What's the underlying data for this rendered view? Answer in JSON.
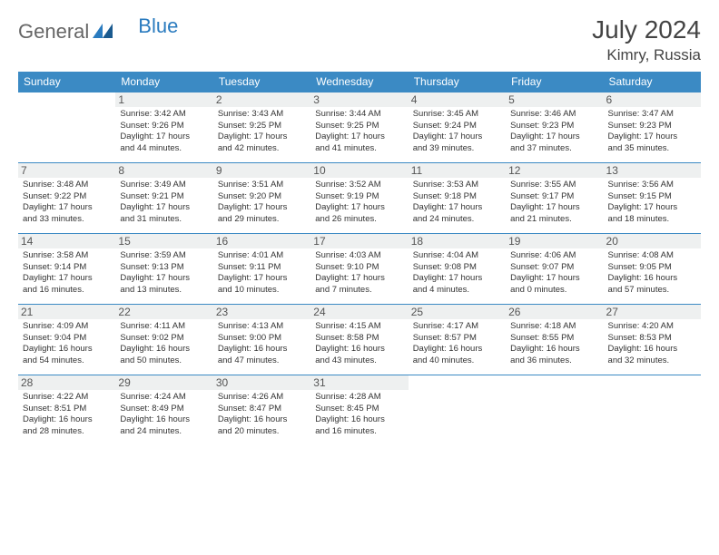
{
  "brand": {
    "word1": "General",
    "word2": "Blue"
  },
  "title": "July 2024",
  "location": "Kimry, Russia",
  "colors": {
    "header_bg": "#3b8ac4",
    "header_text": "#ffffff",
    "row_border": "#3b8ac4",
    "daynum_bg": "#eef0f0",
    "body_text": "#333333",
    "brand_blue": "#2a7bbf",
    "brand_gray": "#666666"
  },
  "weekdays": [
    "Sunday",
    "Monday",
    "Tuesday",
    "Wednesday",
    "Thursday",
    "Friday",
    "Saturday"
  ],
  "weeks": [
    [
      null,
      {
        "n": "1",
        "sr": "Sunrise: 3:42 AM",
        "ss": "Sunset: 9:26 PM",
        "d1": "Daylight: 17 hours",
        "d2": "and 44 minutes."
      },
      {
        "n": "2",
        "sr": "Sunrise: 3:43 AM",
        "ss": "Sunset: 9:25 PM",
        "d1": "Daylight: 17 hours",
        "d2": "and 42 minutes."
      },
      {
        "n": "3",
        "sr": "Sunrise: 3:44 AM",
        "ss": "Sunset: 9:25 PM",
        "d1": "Daylight: 17 hours",
        "d2": "and 41 minutes."
      },
      {
        "n": "4",
        "sr": "Sunrise: 3:45 AM",
        "ss": "Sunset: 9:24 PM",
        "d1": "Daylight: 17 hours",
        "d2": "and 39 minutes."
      },
      {
        "n": "5",
        "sr": "Sunrise: 3:46 AM",
        "ss": "Sunset: 9:23 PM",
        "d1": "Daylight: 17 hours",
        "d2": "and 37 minutes."
      },
      {
        "n": "6",
        "sr": "Sunrise: 3:47 AM",
        "ss": "Sunset: 9:23 PM",
        "d1": "Daylight: 17 hours",
        "d2": "and 35 minutes."
      }
    ],
    [
      {
        "n": "7",
        "sr": "Sunrise: 3:48 AM",
        "ss": "Sunset: 9:22 PM",
        "d1": "Daylight: 17 hours",
        "d2": "and 33 minutes."
      },
      {
        "n": "8",
        "sr": "Sunrise: 3:49 AM",
        "ss": "Sunset: 9:21 PM",
        "d1": "Daylight: 17 hours",
        "d2": "and 31 minutes."
      },
      {
        "n": "9",
        "sr": "Sunrise: 3:51 AM",
        "ss": "Sunset: 9:20 PM",
        "d1": "Daylight: 17 hours",
        "d2": "and 29 minutes."
      },
      {
        "n": "10",
        "sr": "Sunrise: 3:52 AM",
        "ss": "Sunset: 9:19 PM",
        "d1": "Daylight: 17 hours",
        "d2": "and 26 minutes."
      },
      {
        "n": "11",
        "sr": "Sunrise: 3:53 AM",
        "ss": "Sunset: 9:18 PM",
        "d1": "Daylight: 17 hours",
        "d2": "and 24 minutes."
      },
      {
        "n": "12",
        "sr": "Sunrise: 3:55 AM",
        "ss": "Sunset: 9:17 PM",
        "d1": "Daylight: 17 hours",
        "d2": "and 21 minutes."
      },
      {
        "n": "13",
        "sr": "Sunrise: 3:56 AM",
        "ss": "Sunset: 9:15 PM",
        "d1": "Daylight: 17 hours",
        "d2": "and 18 minutes."
      }
    ],
    [
      {
        "n": "14",
        "sr": "Sunrise: 3:58 AM",
        "ss": "Sunset: 9:14 PM",
        "d1": "Daylight: 17 hours",
        "d2": "and 16 minutes."
      },
      {
        "n": "15",
        "sr": "Sunrise: 3:59 AM",
        "ss": "Sunset: 9:13 PM",
        "d1": "Daylight: 17 hours",
        "d2": "and 13 minutes."
      },
      {
        "n": "16",
        "sr": "Sunrise: 4:01 AM",
        "ss": "Sunset: 9:11 PM",
        "d1": "Daylight: 17 hours",
        "d2": "and 10 minutes."
      },
      {
        "n": "17",
        "sr": "Sunrise: 4:03 AM",
        "ss": "Sunset: 9:10 PM",
        "d1": "Daylight: 17 hours",
        "d2": "and 7 minutes."
      },
      {
        "n": "18",
        "sr": "Sunrise: 4:04 AM",
        "ss": "Sunset: 9:08 PM",
        "d1": "Daylight: 17 hours",
        "d2": "and 4 minutes."
      },
      {
        "n": "19",
        "sr": "Sunrise: 4:06 AM",
        "ss": "Sunset: 9:07 PM",
        "d1": "Daylight: 17 hours",
        "d2": "and 0 minutes."
      },
      {
        "n": "20",
        "sr": "Sunrise: 4:08 AM",
        "ss": "Sunset: 9:05 PM",
        "d1": "Daylight: 16 hours",
        "d2": "and 57 minutes."
      }
    ],
    [
      {
        "n": "21",
        "sr": "Sunrise: 4:09 AM",
        "ss": "Sunset: 9:04 PM",
        "d1": "Daylight: 16 hours",
        "d2": "and 54 minutes."
      },
      {
        "n": "22",
        "sr": "Sunrise: 4:11 AM",
        "ss": "Sunset: 9:02 PM",
        "d1": "Daylight: 16 hours",
        "d2": "and 50 minutes."
      },
      {
        "n": "23",
        "sr": "Sunrise: 4:13 AM",
        "ss": "Sunset: 9:00 PM",
        "d1": "Daylight: 16 hours",
        "d2": "and 47 minutes."
      },
      {
        "n": "24",
        "sr": "Sunrise: 4:15 AM",
        "ss": "Sunset: 8:58 PM",
        "d1": "Daylight: 16 hours",
        "d2": "and 43 minutes."
      },
      {
        "n": "25",
        "sr": "Sunrise: 4:17 AM",
        "ss": "Sunset: 8:57 PM",
        "d1": "Daylight: 16 hours",
        "d2": "and 40 minutes."
      },
      {
        "n": "26",
        "sr": "Sunrise: 4:18 AM",
        "ss": "Sunset: 8:55 PM",
        "d1": "Daylight: 16 hours",
        "d2": "and 36 minutes."
      },
      {
        "n": "27",
        "sr": "Sunrise: 4:20 AM",
        "ss": "Sunset: 8:53 PM",
        "d1": "Daylight: 16 hours",
        "d2": "and 32 minutes."
      }
    ],
    [
      {
        "n": "28",
        "sr": "Sunrise: 4:22 AM",
        "ss": "Sunset: 8:51 PM",
        "d1": "Daylight: 16 hours",
        "d2": "and 28 minutes."
      },
      {
        "n": "29",
        "sr": "Sunrise: 4:24 AM",
        "ss": "Sunset: 8:49 PM",
        "d1": "Daylight: 16 hours",
        "d2": "and 24 minutes."
      },
      {
        "n": "30",
        "sr": "Sunrise: 4:26 AM",
        "ss": "Sunset: 8:47 PM",
        "d1": "Daylight: 16 hours",
        "d2": "and 20 minutes."
      },
      {
        "n": "31",
        "sr": "Sunrise: 4:28 AM",
        "ss": "Sunset: 8:45 PM",
        "d1": "Daylight: 16 hours",
        "d2": "and 16 minutes."
      },
      null,
      null,
      null
    ]
  ]
}
